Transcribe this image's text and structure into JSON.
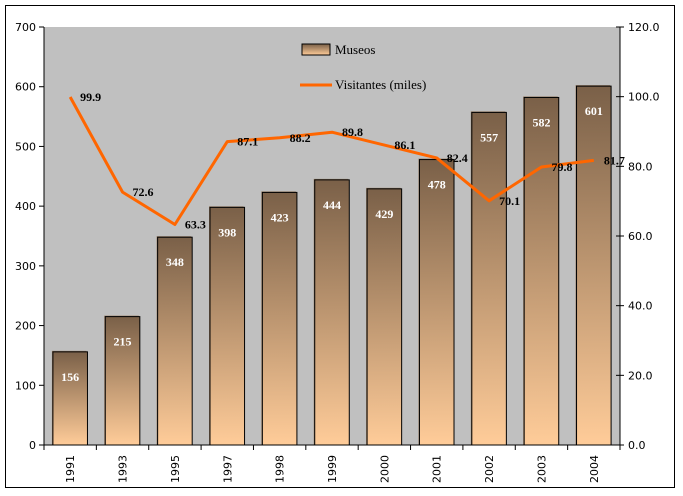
{
  "chart_data": {
    "type": "bar",
    "title": "",
    "xlabel": "",
    "ylabel": "",
    "ylabel_right": "",
    "categories": [
      "1991",
      "1993",
      "1995",
      "1997",
      "1998",
      "1999",
      "2000",
      "2001",
      "2002",
      "2003",
      "2004"
    ],
    "series": [
      {
        "name": "Museos",
        "type": "bar",
        "axis": "left",
        "values": [
          156,
          215,
          348,
          398,
          423,
          444,
          429,
          478,
          557,
          582,
          601
        ],
        "labels": [
          "156",
          "215",
          "348",
          "398",
          "423",
          "444",
          "429",
          "478",
          "557",
          "582",
          "601"
        ],
        "color_top": "#7a6048",
        "color_bottom": "#ffcc99"
      },
      {
        "name": "Visitantes (miles)",
        "type": "line",
        "axis": "right",
        "values": [
          99.9,
          72.6,
          63.3,
          87.1,
          88.2,
          89.8,
          86.1,
          82.4,
          70.1,
          79.8,
          81.7
        ],
        "labels": [
          "99.9",
          "72.6",
          "63.3",
          "87.1",
          "88.2",
          "89.8",
          "86.1",
          "82.4",
          "70.1",
          "79.8",
          "81.7"
        ],
        "color": "#ff6600"
      }
    ],
    "ylim": [
      0,
      700
    ],
    "yticks": [
      "0",
      "100",
      "200",
      "300",
      "400",
      "500",
      "600",
      "700"
    ],
    "ylim_right": [
      0,
      120
    ],
    "yticks_right": [
      "0.0",
      "20.0",
      "40.0",
      "60.0",
      "80.0",
      "100.0",
      "120.0"
    ],
    "grid": false,
    "plot_background": "#c0c0c0",
    "legend": {
      "position": "top-center",
      "entries": [
        "Museos",
        "Visitantes (miles)"
      ]
    }
  }
}
